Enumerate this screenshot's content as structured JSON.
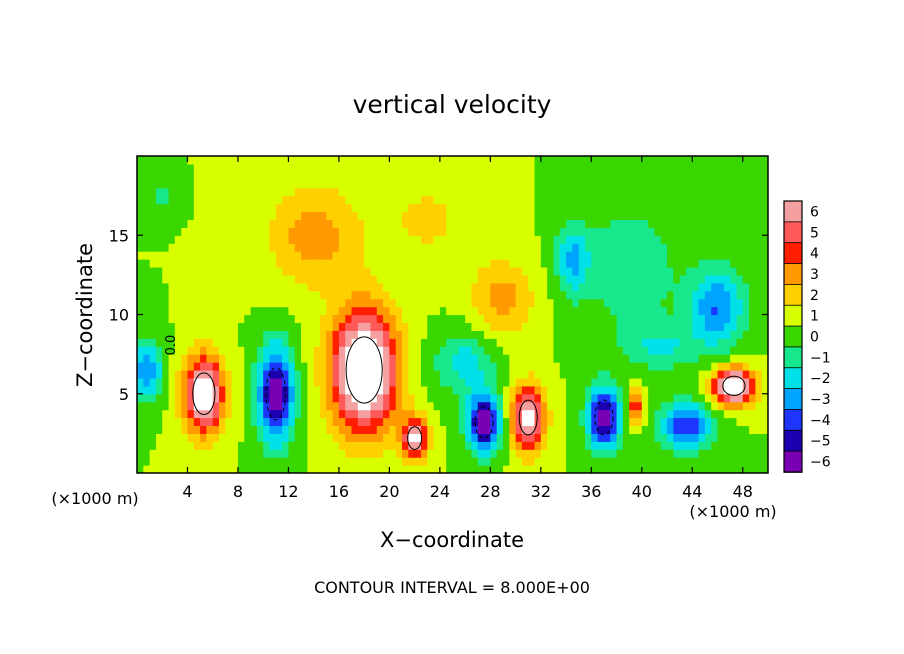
{
  "chart_data": {
    "type": "heatmap",
    "title": "vertical velocity",
    "xlabel": "X−coordinate",
    "ylabel": "Z−coordinate",
    "x_unit_left": "(×1000 m)",
    "x_unit_right": "(×1000 m)",
    "footer": "CONTOUR INTERVAL = 8.000E+00",
    "contour_label": "0.0",
    "xlim": [
      0,
      50
    ],
    "ylim": [
      0,
      20
    ],
    "x_ticks": [
      4,
      8,
      12,
      16,
      20,
      24,
      28,
      32,
      36,
      40,
      44,
      48
    ],
    "x_tick_labels": [
      "4",
      "8",
      "12",
      "16",
      "20",
      "24",
      "28",
      "32",
      "36",
      "40",
      "44",
      "48"
    ],
    "y_ticks": [
      5,
      10,
      15
    ],
    "y_tick_labels": [
      "5",
      "10",
      "15"
    ],
    "colorbar": {
      "levels": [
        6,
        5,
        4,
        3,
        2,
        1,
        0,
        -1,
        -2,
        -3,
        -4,
        -5,
        -6
      ],
      "labels": [
        "6",
        "5",
        "4",
        "3",
        "2",
        "1",
        "0",
        "−1",
        "−2",
        "−3",
        "−4",
        "−5",
        "−6"
      ],
      "colors": [
        "#f4a0a0",
        "#ff5a5a",
        "#ff1e00",
        "#ff9a00",
        "#ffd000",
        "#d8ff00",
        "#3ad600",
        "#18e88c",
        "#00e0e8",
        "#00a4ff",
        "#1c36ff",
        "#1a00b0",
        "#7a00b4"
      ]
    },
    "background_value": 0.5,
    "features": [
      {
        "x": 5.3,
        "z": 5.0,
        "sx": 1.6,
        "sz": 2.4,
        "amp": 7.5
      },
      {
        "x": 18.0,
        "z": 6.5,
        "sx": 2.6,
        "sz": 3.8,
        "amp": 9.0
      },
      {
        "x": 22.0,
        "z": 2.2,
        "sx": 1.0,
        "sz": 1.3,
        "amp": 6.5
      },
      {
        "x": 31.0,
        "z": 3.5,
        "sx": 1.3,
        "sz": 2.0,
        "amp": 7.0
      },
      {
        "x": 14.0,
        "z": 15.0,
        "sx": 3.5,
        "sz": 3.2,
        "amp": 2.6
      },
      {
        "x": 29.0,
        "z": 11.0,
        "sx": 2.5,
        "sz": 2.5,
        "amp": 2.4
      },
      {
        "x": 23.0,
        "z": 16.0,
        "sx": 4.0,
        "sz": 3.0,
        "amp": 1.2
      },
      {
        "x": 11.0,
        "z": 5.0,
        "sx": 1.4,
        "sz": 3.0,
        "amp": -7.0
      },
      {
        "x": 0.8,
        "z": 6.5,
        "sx": 1.2,
        "sz": 1.8,
        "amp": -4.0
      },
      {
        "x": 27.5,
        "z": 3.2,
        "sx": 1.3,
        "sz": 1.8,
        "amp": -7.0
      },
      {
        "x": 37.0,
        "z": 3.5,
        "sx": 1.3,
        "sz": 2.0,
        "amp": -6.5
      },
      {
        "x": 43.5,
        "z": 3.0,
        "sx": 2.0,
        "sz": 1.5,
        "amp": -5.0
      },
      {
        "x": 26.0,
        "z": 7.0,
        "sx": 2.5,
        "sz": 2.0,
        "amp": -2.5
      },
      {
        "x": 34.5,
        "z": 13.5,
        "sx": 1.3,
        "sz": 2.2,
        "amp": -3.0
      },
      {
        "x": 46.0,
        "z": 10.5,
        "sx": 2.2,
        "sz": 2.5,
        "amp": -4.0
      },
      {
        "x": 39.0,
        "z": 13.0,
        "sx": 4.0,
        "sz": 4.0,
        "amp": -1.8
      },
      {
        "x": 41.5,
        "z": 8.0,
        "sx": 3.0,
        "sz": 1.5,
        "amp": -2.0
      },
      {
        "x": 2.0,
        "z": 17.5,
        "sx": 1.0,
        "sz": 1.0,
        "amp": -1.6
      },
      {
        "x": 39.5,
        "z": 4.2,
        "sx": 0.6,
        "sz": 1.0,
        "amp": 4.5
      },
      {
        "x": 47.3,
        "z": 5.5,
        "sx": 1.6,
        "sz": 1.1,
        "amp": 9.0
      }
    ]
  }
}
